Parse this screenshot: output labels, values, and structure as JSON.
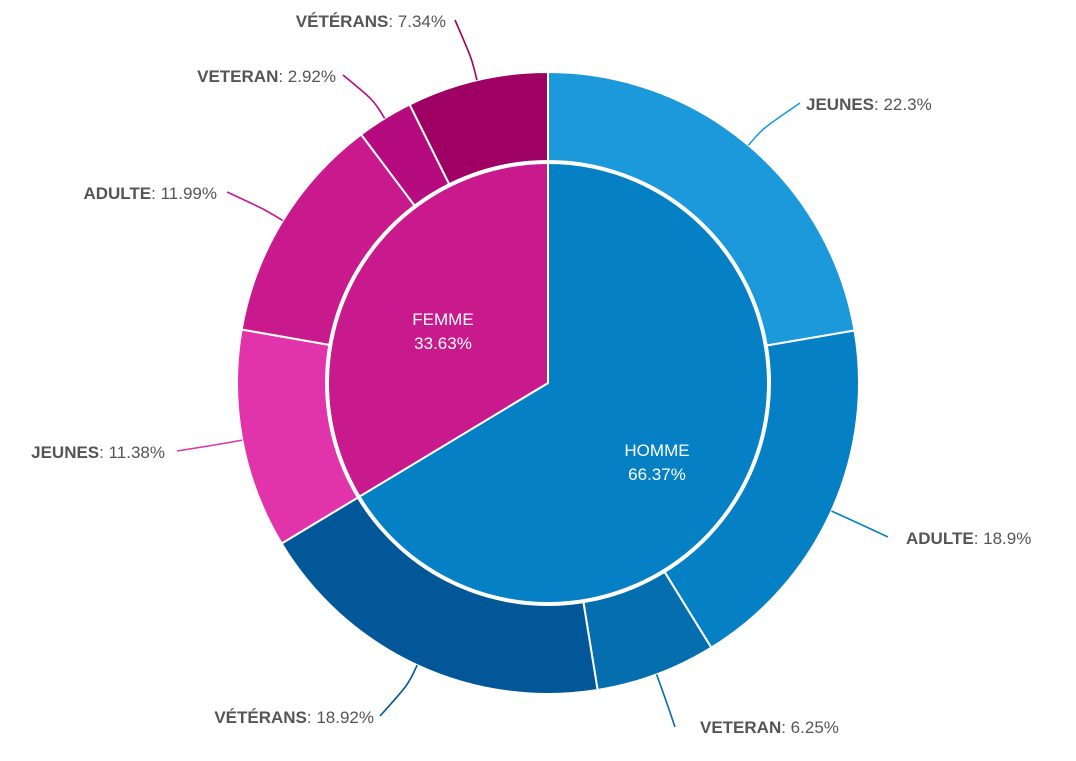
{
  "chart_data": {
    "type": "pie",
    "subtype": "sunburst",
    "inner": [
      {
        "name": "HOMME",
        "value": 66.37,
        "label": "HOMME",
        "value_text": "66.37%",
        "color": "#0580C4"
      },
      {
        "name": "FEMME",
        "value": 33.63,
        "label": "FEMME",
        "value_text": "33.63%",
        "color": "#C8198D"
      }
    ],
    "outer": [
      {
        "name": "JEUNES",
        "parent": "HOMME",
        "value": 22.3,
        "value_text": "22.3%",
        "color": "#1C99DA"
      },
      {
        "name": "ADULTE",
        "parent": "HOMME",
        "value": 18.9,
        "value_text": "18.9%",
        "color": "#0580C4"
      },
      {
        "name": "VETERAN",
        "parent": "HOMME",
        "value": 6.25,
        "value_text": "6.25%",
        "color": "#046EAF"
      },
      {
        "name": "VÉTÉRANS",
        "parent": "HOMME",
        "value": 18.92,
        "value_text": "18.92%",
        "color": "#025799"
      },
      {
        "name": "JEUNES",
        "parent": "FEMME",
        "value": 11.38,
        "value_text": "11.38%",
        "color": "#E234AA"
      },
      {
        "name": "ADULTE",
        "parent": "FEMME",
        "value": 11.99,
        "value_text": "11.99%",
        "color": "#C8198D"
      },
      {
        "name": "VETERAN",
        "parent": "FEMME",
        "value": 2.92,
        "value_text": "2.92%",
        "color": "#B60A7F"
      },
      {
        "name": "VÉTÉRANS",
        "parent": "FEMME",
        "value": 7.34,
        "value_text": "7.34%",
        "color": "#9E0063"
      }
    ]
  }
}
